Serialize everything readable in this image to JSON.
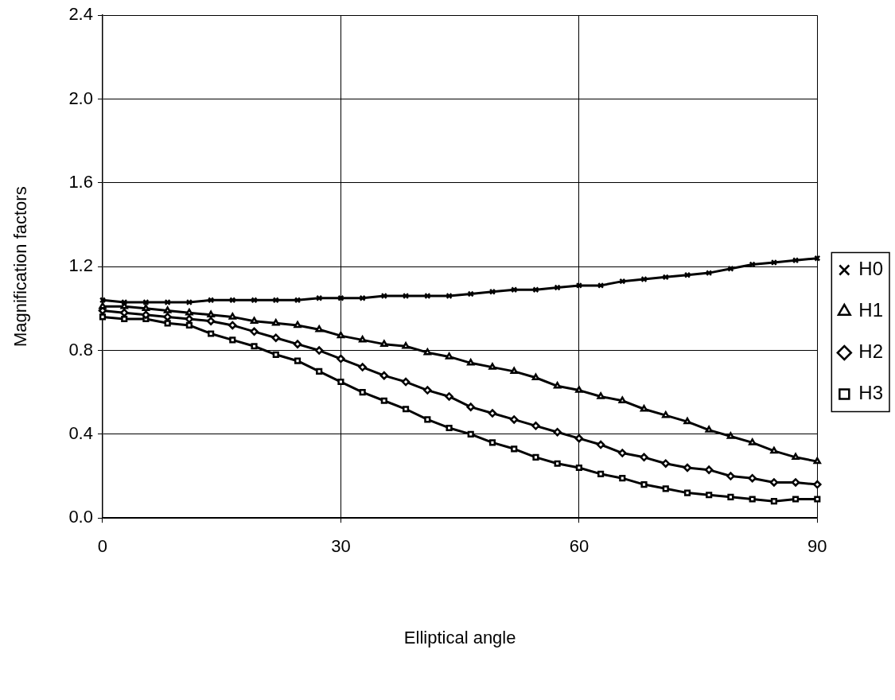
{
  "chart_data": {
    "type": "line",
    "xlabel": "Elliptical angle",
    "ylabel": "Magnification factors",
    "x": [
      0,
      2.73,
      5.45,
      8.18,
      10.91,
      13.64,
      16.36,
      19.09,
      21.82,
      24.55,
      27.27,
      30,
      32.73,
      35.45,
      38.18,
      40.91,
      43.64,
      46.36,
      49.09,
      51.82,
      54.55,
      57.27,
      60,
      62.73,
      65.45,
      68.18,
      70.91,
      73.64,
      76.36,
      79.09,
      81.82,
      84.55,
      87.27,
      90
    ],
    "xlim": [
      0,
      90
    ],
    "xticks": [
      0,
      30,
      60,
      90
    ],
    "ylim": [
      0,
      2.4
    ],
    "yticks": [
      {
        "value": 0,
        "label": "0.0"
      },
      {
        "value": 0.4,
        "label": "0.4"
      },
      {
        "value": 0.8,
        "label": "0.8"
      },
      {
        "value": 1.2,
        "label": "1.2"
      },
      {
        "value": 1.6,
        "label": "1.6"
      },
      {
        "value": 2.0,
        "label": "2.0"
      },
      {
        "value": 2.4,
        "label": "2.4"
      }
    ],
    "grid": true,
    "legend": "right",
    "line_style": "solid",
    "series": [
      {
        "name": "H0",
        "color": "#000000",
        "marker": "cross",
        "values": [
          1.04,
          1.03,
          1.03,
          1.03,
          1.03,
          1.04,
          1.04,
          1.04,
          1.04,
          1.04,
          1.05,
          1.05,
          1.05,
          1.06,
          1.06,
          1.06,
          1.06,
          1.07,
          1.08,
          1.09,
          1.09,
          1.1,
          1.11,
          1.11,
          1.13,
          1.14,
          1.15,
          1.16,
          1.17,
          1.19,
          1.21,
          1.22,
          1.23,
          1.24
        ]
      },
      {
        "name": "H1",
        "color": "#000000",
        "marker": "triangle",
        "values": [
          1.01,
          1.01,
          1.0,
          0.99,
          0.98,
          0.97,
          0.96,
          0.94,
          0.93,
          0.92,
          0.9,
          0.87,
          0.85,
          0.83,
          0.82,
          0.79,
          0.77,
          0.74,
          0.72,
          0.7,
          0.67,
          0.63,
          0.61,
          0.58,
          0.56,
          0.52,
          0.49,
          0.46,
          0.42,
          0.39,
          0.36,
          0.32,
          0.29,
          0.27
        ]
      },
      {
        "name": "H2",
        "color": "#000000",
        "marker": "diamond",
        "values": [
          0.99,
          0.98,
          0.97,
          0.96,
          0.95,
          0.94,
          0.92,
          0.89,
          0.86,
          0.83,
          0.8,
          0.76,
          0.72,
          0.68,
          0.65,
          0.61,
          0.58,
          0.53,
          0.5,
          0.47,
          0.44,
          0.41,
          0.38,
          0.35,
          0.31,
          0.29,
          0.26,
          0.24,
          0.23,
          0.2,
          0.19,
          0.17,
          0.17,
          0.16
        ]
      },
      {
        "name": "H3",
        "color": "#000000",
        "marker": "square",
        "values": [
          0.96,
          0.95,
          0.95,
          0.93,
          0.92,
          0.88,
          0.85,
          0.82,
          0.78,
          0.75,
          0.7,
          0.65,
          0.6,
          0.56,
          0.52,
          0.47,
          0.43,
          0.4,
          0.36,
          0.33,
          0.29,
          0.26,
          0.24,
          0.21,
          0.19,
          0.16,
          0.14,
          0.12,
          0.11,
          0.1,
          0.09,
          0.08,
          0.09,
          0.09
        ]
      }
    ]
  }
}
